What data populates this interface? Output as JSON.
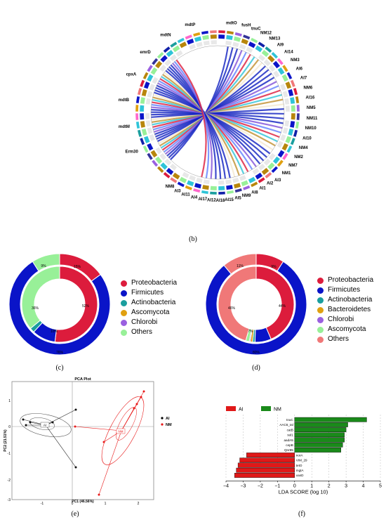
{
  "captions": {
    "b": "(b)",
    "c": "(c)",
    "d": "(d)",
    "e": "(e)",
    "f": "(f)"
  },
  "circos": {
    "left_labels": [
      "mdtP",
      "mdtN",
      "emrD",
      "cpxA",
      "mdtB",
      "mdtM",
      "Erm30"
    ],
    "top_labels": [
      "mdtO",
      "fusH",
      "tnuC",
      "NM12",
      "NM13",
      "AI9",
      "AI14",
      "NM3",
      "AI6",
      "AI7",
      "NM6",
      "AI16",
      "NM5",
      "NM11",
      "NM10",
      "AI10",
      "NM4",
      "NM2",
      "NM7",
      "NM1",
      "AI3"
    ],
    "bottom_labels": [
      "NM8",
      "AI3",
      "AI11",
      "AI4",
      "AI17",
      "AI12",
      "AI18",
      "AI15",
      "AI5",
      "NM9",
      "AI8",
      "AI1",
      "AI2"
    ]
  },
  "donut_c": {
    "legend": [
      {
        "label": "Proteobacteria",
        "color": "#dc1c3c"
      },
      {
        "label": "Firmicutes",
        "color": "#0a14c8"
      },
      {
        "label": "Actinobacteria",
        "color": "#1a9e9e"
      },
      {
        "label": "Ascomycota",
        "color": "#e0a010"
      },
      {
        "label": "Chlorobi",
        "color": "#9a60e0"
      },
      {
        "label": "Others",
        "color": "#98f098"
      }
    ],
    "outer": [
      0.15,
      0.76,
      0.0,
      0.0,
      0.0,
      0.09
    ],
    "inner": [
      0.52,
      0.1,
      0.02,
      0.0,
      0.0,
      0.36
    ],
    "labels": {
      "outer_prot": "15%",
      "outer_oth": "9%",
      "inner_prot": "52%",
      "inner_oth": "36%",
      "outer_firm": "76%",
      "inner_firm": "10%"
    }
  },
  "donut_d": {
    "legend": [
      {
        "label": "Proteobacteria",
        "color": "#dc1c3c"
      },
      {
        "label": "Firmicutes",
        "color": "#0a14c8"
      },
      {
        "label": "Actinobacteria",
        "color": "#1a9e9e"
      },
      {
        "label": "Bacteroidetes",
        "color": "#e0a010"
      },
      {
        "label": "Chlorobi",
        "color": "#9a60e0"
      },
      {
        "label": "Ascomycota",
        "color": "#98f098"
      },
      {
        "label": "Others",
        "color": "#f07878"
      }
    ],
    "outer": [
      0.09,
      0.8,
      0.0,
      0.0,
      0.0,
      0.0,
      0.11
    ],
    "inner": [
      0.44,
      0.07,
      0.01,
      0.01,
      0.005,
      0.015,
      0.46
    ],
    "labels": {
      "outer_prot": "9%",
      "outer_oth": "11%",
      "inner_prot": "44%",
      "inner_oth": "46%",
      "outer_firm": "80%",
      "inner_firm": "7%"
    }
  },
  "pca": {
    "title": "PCA Plot",
    "xlabel": "PC1 (46.56%)",
    "ylabel": "PC2 (21.51%)",
    "xticks": [
      "-1",
      "0",
      "1",
      "2"
    ],
    "yticks": [
      "1",
      "0",
      "-1",
      "-2",
      "-3"
    ],
    "legend": [
      {
        "label": "AI",
        "color": "#000000"
      },
      {
        "label": "NM",
        "color": "#e81818"
      }
    ],
    "centroid_ai": "AI",
    "centroid_nm": "NM"
  },
  "lefse": {
    "legend": [
      {
        "label": "AI",
        "color": "#e01818"
      },
      {
        "label": "NM",
        "color": "#1a8a1a"
      }
    ],
    "xlabel": "LDA SCORE (log 10)",
    "xticks": [
      "−4",
      "−3",
      "−2",
      "−1",
      "0",
      "1",
      "2",
      "3",
      "4",
      "5"
    ],
    "chart_data": {
      "type": "bar",
      "categories": [
        "tnuC",
        "AAC6_Ial",
        "catB",
        "sul1",
        "aadA5",
        "cepB",
        "Qnr85",
        "norA",
        "VIM_29",
        "tetO",
        "mgtA",
        "vanD"
      ],
      "values": [
        4.2,
        3.1,
        3.0,
        2.9,
        2.9,
        2.8,
        2.7,
        -2.8,
        -3.2,
        -3.3,
        -3.4,
        -3.5
      ],
      "groups": [
        "NM",
        "NM",
        "NM",
        "NM",
        "NM",
        "NM",
        "NM",
        "AI",
        "AI",
        "AI",
        "AI",
        "AI"
      ],
      "xlabel": "LDA SCORE (log 10)",
      "xlim": [
        -4,
        5
      ]
    }
  },
  "chart_data": {
    "type": "bar",
    "categories": [
      "tnuC",
      "AAC6_Ial",
      "catB",
      "sul1",
      "aadA5",
      "cepB",
      "Qnr85",
      "norA",
      "VIM_29",
      "tetO",
      "mgtA",
      "vanD"
    ],
    "values": [
      4.2,
      3.1,
      3.0,
      2.9,
      2.9,
      2.8,
      2.7,
      -2.8,
      -3.2,
      -3.3,
      -3.4,
      -3.5
    ],
    "xlabel": "LDA SCORE (log 10)",
    "xlim": [
      -4,
      5
    ]
  }
}
